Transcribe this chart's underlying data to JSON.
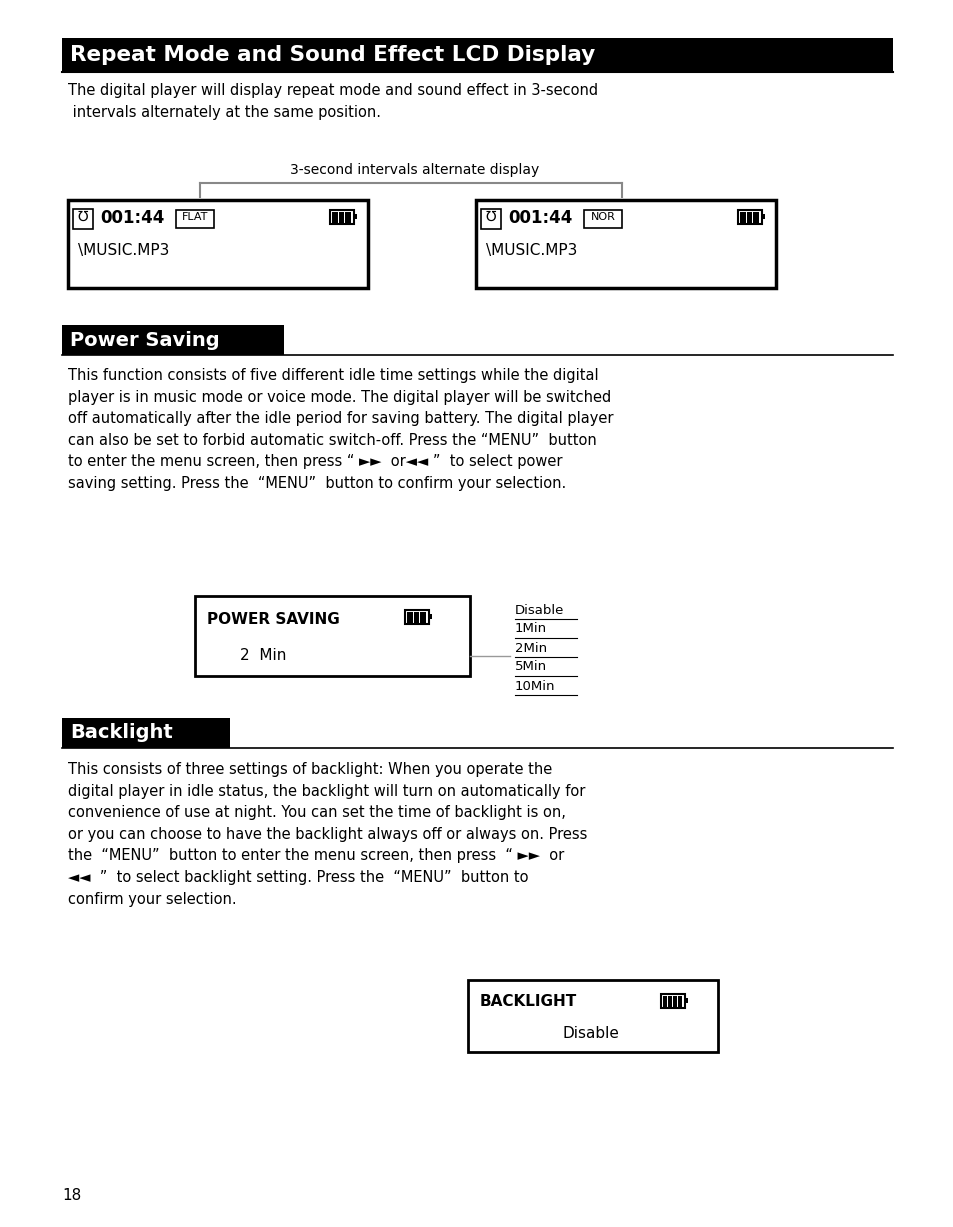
{
  "title1": "Repeat Mode and Sound Effect LCD Display",
  "body1": "The digital player will display repeat mode and sound effect in 3-second\n intervals alternately at the same position.",
  "label_3sec": "3-second intervals alternate display",
  "lcd1_time": "001:44",
  "lcd1_mode": "FLAT",
  "lcd1_line2": "\\MUSIC.MP3",
  "lcd2_time": "001:44",
  "lcd2_mode": "NOR",
  "lcd2_line2": "\\MUSIC.MP3",
  "title2": "Power Saving",
  "body2": "This function consists of five different idle time settings while the digital\nplayer is in music mode or voice mode. The digital player will be switched\noff automatically after the idle period for saving battery. The digital player\ncan also be set to forbid automatic switch-off. Press the “MENU”  button\nto enter the menu screen, then press “ ►►  or◄◄ ”  to select power\nsaving setting. Press the  “MENU”  button to confirm your selection.",
  "ps_label": "POWER SAVING",
  "ps_value": "2  Min",
  "ps_options": [
    "Disable",
    "1Min",
    "2Min",
    "5Min",
    "10Min"
  ],
  "ps_selected_idx": 2,
  "title3": "Backlight",
  "body3": "This consists of three settings of backlight: When you operate the\ndigital player in idle status, the backlight will turn on automatically for\nconvenience of use at night. You can set the time of backlight is on,\nor you can choose to have the backlight always off or always on. Press\nthe  “MENU”  button to enter the menu screen, then press  “ ►►  or\n◄◄  ”  to select backlight setting. Press the  “MENU”  button to\nconfirm your selection.",
  "bl_label": "BACKLIGHT",
  "bl_value": "Disable",
  "page_num": "18",
  "bg_color": "#ffffff",
  "title_bg": "#000000",
  "title_fg": "#ffffff",
  "text_color": "#000000"
}
